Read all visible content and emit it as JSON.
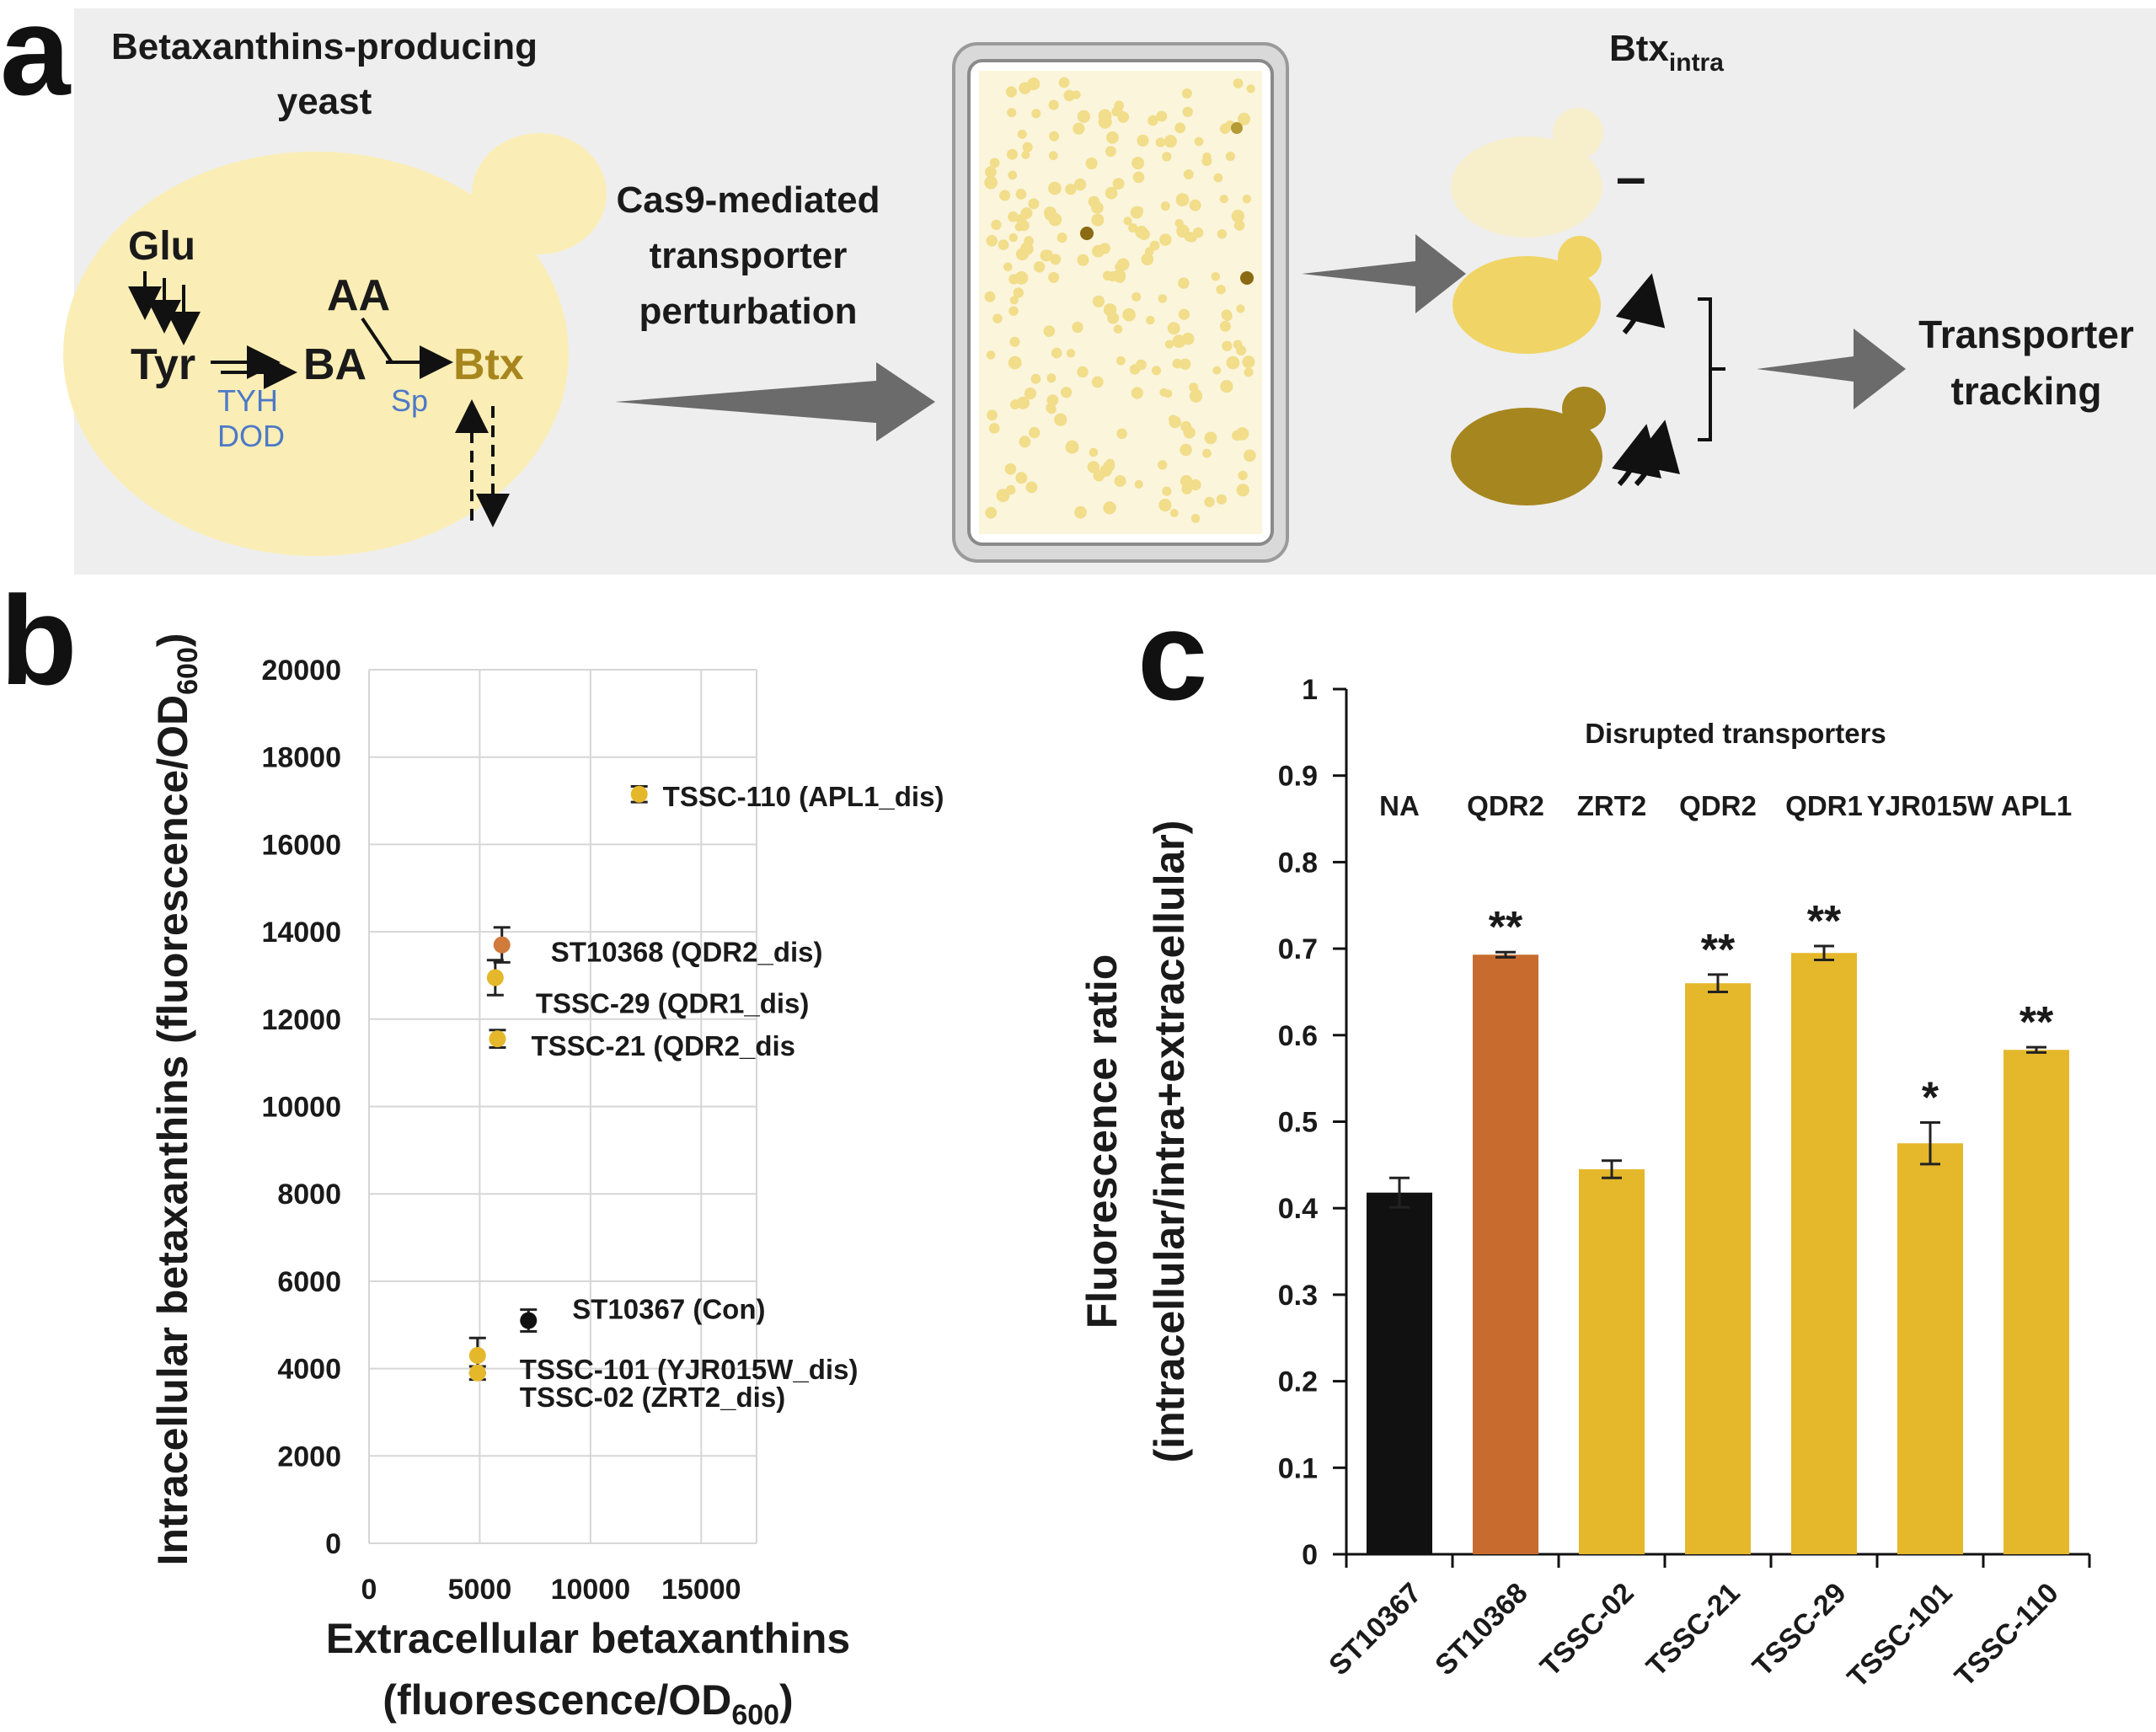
{
  "panel_a": {
    "letter": "a",
    "yeast_title_line1": "Betaxanthins-producing",
    "yeast_title_line2": "yeast",
    "glu": "Glu",
    "tyr": "Tyr",
    "ba": "BA",
    "aa": "AA",
    "btx": "Btx",
    "tyh": "TYH",
    "dod": "DOD",
    "sp": "Sp",
    "step_line1": "Cas9-mediated",
    "step_line2": "transporter",
    "step_line3": "perturbation",
    "btx_intra_main": "Btx",
    "btx_intra_sub": "intra",
    "minus": "–",
    "tracking_line1": "Transporter",
    "tracking_line2": "tracking",
    "colors": {
      "background": "#eeeeee",
      "cell": "#faeeb6",
      "btx_text": "#a8861e",
      "enzyme_text": "#4d79c7",
      "arrow_gray": "#6b6b6b",
      "cell_light": "#f7eecb",
      "cell_mid": "#f0d566",
      "cell_dark": "#a6861f"
    }
  },
  "panel_b": {
    "letter": "b",
    "chart_data": {
      "type": "scatter",
      "xlabel_line1": "Extracellular  betaxanthins",
      "xlabel_line2_main": "(fluorescence/OD",
      "xlabel_line2_sub": "600",
      "xlabel_line2_end": ")",
      "ylabel_main": "Intracellular  betaxanthins (fluorescence/OD",
      "ylabel_sub": "600",
      "ylabel_end": ")",
      "xlim": [
        0,
        17500
      ],
      "ylim": [
        0,
        20000
      ],
      "xticks": [
        "0",
        "5000",
        "10000",
        "15000"
      ],
      "xtick_values": [
        0,
        5000,
        10000,
        15000
      ],
      "yticks": [
        "0",
        "2000",
        "4000",
        "6000",
        "8000",
        "10000",
        "12000",
        "14000",
        "16000",
        "18000",
        "20000"
      ],
      "ytick_values": [
        0,
        2000,
        4000,
        6000,
        8000,
        10000,
        12000,
        14000,
        16000,
        18000,
        20000
      ],
      "grid": true,
      "points": [
        {
          "label": "TSSC-110 (APL1_dis)",
          "x": 12200,
          "y": 17150,
          "err": 180,
          "color": "#e5b82b"
        },
        {
          "label": "ST10368  (QDR2_dis)",
          "x": 6000,
          "y": 13700,
          "err": 400,
          "color": "#d07a3c"
        },
        {
          "label": "TSSC-29  (QDR1_dis)",
          "x": 5700,
          "y": 12950,
          "err": 400,
          "color": "#e5b82b"
        },
        {
          "label": "TSSC-21  (QDR2_dis",
          "x": 5800,
          "y": 11550,
          "err": 200,
          "color": "#e5b82b"
        },
        {
          "label": "ST10367  (Con)",
          "x": 7200,
          "y": 5100,
          "err": 250,
          "color": "#111111"
        },
        {
          "label": "TSSC-101 (YJR015W_dis)",
          "x": 4900,
          "y": 4300,
          "err": 400,
          "color": "#e5b82b"
        },
        {
          "label": "TSSC-02 (ZRT2_dis)",
          "x": 4900,
          "y": 3900,
          "err": 150,
          "color": "#e5b82b"
        }
      ]
    }
  },
  "panel_c": {
    "letter": "c",
    "header": "Disrupted transporters",
    "chart_data": {
      "type": "bar",
      "categories": [
        "ST10367",
        "ST10368",
        "TSSC-02",
        "TSSC-21",
        "TSSC-29",
        "TSSC-101",
        "TSSC-110"
      ],
      "values": [
        0.418,
        0.693,
        0.445,
        0.66,
        0.695,
        0.475,
        0.583
      ],
      "errors": [
        0.017,
        0.003,
        0.01,
        0.01,
        0.008,
        0.024,
        0.003
      ],
      "genes": [
        "NA",
        "QDR2",
        "ZRT2",
        "QDR2",
        "QDR1",
        "YJR015W",
        "APL1"
      ],
      "significance": [
        "",
        "**",
        "",
        "**",
        "**",
        "*",
        "**"
      ],
      "colors": [
        "#111111",
        "#c86b2e",
        "#e5b82b",
        "#e5b82b",
        "#e5b82b",
        "#e5b82b",
        "#e5b82b"
      ],
      "ylabel_line1": "Fluorescence ratio",
      "ylabel_line2": "(intracellular/intra+extracellular)",
      "ylim": [
        0,
        1
      ],
      "yticks": [
        "0",
        "0.1",
        "0.2",
        "0.3",
        "0.4",
        "0.5",
        "0.6",
        "0.7",
        "0.8",
        "0.9",
        "1"
      ],
      "ytick_values": [
        0,
        0.1,
        0.2,
        0.3,
        0.4,
        0.5,
        0.6,
        0.7,
        0.8,
        0.9,
        1
      ]
    }
  }
}
